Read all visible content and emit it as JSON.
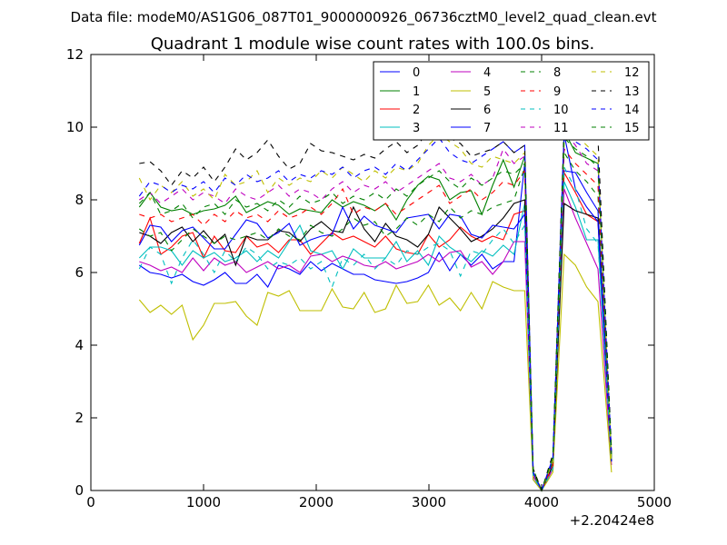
{
  "header": {
    "datafile": "Data file: modeM0/AS1G06_087T01_9000000926_06736cztM0_level2_quad_clean.evt"
  },
  "chart_data": {
    "type": "line",
    "title": "Quadrant 1 module wise count rates with 100.0s bins.",
    "xlabel": "",
    "ylabel": "",
    "xlim": [
      0,
      5000
    ],
    "ylim": [
      0,
      12
    ],
    "x_offset_label": "+2.20424e8",
    "xticks": [
      0,
      1000,
      2000,
      3000,
      4000,
      5000
    ],
    "xtick_labels": [
      "0",
      "1000",
      "2000",
      "3000",
      "4000",
      "5000"
    ],
    "yticks": [
      0,
      2,
      4,
      6,
      8,
      10,
      12
    ],
    "ytick_labels": [
      "0",
      "2",
      "4",
      "6",
      "8",
      "10",
      "12"
    ],
    "legend_position": "top-right",
    "x": [
      430,
      525,
      620,
      715,
      810,
      905,
      1000,
      1095,
      1190,
      1285,
      1380,
      1475,
      1570,
      1665,
      1760,
      1855,
      1950,
      2045,
      2140,
      2235,
      2330,
      2425,
      2520,
      2615,
      2710,
      2805,
      2900,
      2995,
      3090,
      3185,
      3280,
      3375,
      3470,
      3565,
      3660,
      3755,
      3850,
      3925,
      4000,
      4100,
      4200,
      4300,
      4400,
      4500,
      4620
    ],
    "series": [
      {
        "name": "0",
        "color": "#0000ff",
        "dash": "solid",
        "values": [
          6.2,
          6.0,
          5.95,
          5.85,
          5.95,
          5.75,
          5.65,
          5.8,
          6.0,
          5.7,
          5.7,
          5.95,
          5.6,
          6.2,
          6.1,
          5.95,
          6.3,
          6.05,
          6.25,
          6.1,
          5.95,
          5.95,
          5.8,
          5.75,
          5.7,
          5.75,
          5.85,
          6.0,
          6.55,
          6.05,
          6.5,
          6.2,
          6.5,
          6.1,
          6.3,
          6.3,
          9.0,
          0.3,
          0.0,
          0.6,
          8.8,
          8.75,
          8.2,
          7.7,
          0.9
        ]
      },
      {
        "name": "1",
        "color": "#008000",
        "dash": "solid",
        "values": [
          7.8,
          8.2,
          7.8,
          7.7,
          7.75,
          7.6,
          7.7,
          7.75,
          7.85,
          8.1,
          7.65,
          7.8,
          7.95,
          7.85,
          7.6,
          7.75,
          7.7,
          7.65,
          8.0,
          7.8,
          7.95,
          7.85,
          7.7,
          7.9,
          7.45,
          8.0,
          8.4,
          8.65,
          8.55,
          8.0,
          8.2,
          8.25,
          7.6,
          8.4,
          9.1,
          8.35,
          9.2,
          0.4,
          0.0,
          0.8,
          9.9,
          9.3,
          9.15,
          9.0,
          0.9
        ]
      },
      {
        "name": "2",
        "color": "#ff0000",
        "dash": "solid",
        "values": [
          6.8,
          7.5,
          6.5,
          6.7,
          7.0,
          7.1,
          6.4,
          7.0,
          6.6,
          6.55,
          7.0,
          6.7,
          6.8,
          6.55,
          6.9,
          6.9,
          6.5,
          6.8,
          7.1,
          6.9,
          7.0,
          6.85,
          6.7,
          7.0,
          6.65,
          6.55,
          6.5,
          7.05,
          6.7,
          6.9,
          7.25,
          7.0,
          6.85,
          7.0,
          6.9,
          7.6,
          7.7,
          0.4,
          0.0,
          0.6,
          8.75,
          8.2,
          7.6,
          7.4,
          0.8
        ]
      },
      {
        "name": "3",
        "color": "#00bfbf",
        "dash": "solid",
        "values": [
          6.4,
          6.7,
          6.7,
          6.6,
          6.2,
          6.6,
          6.4,
          6.55,
          6.3,
          6.4,
          6.6,
          6.3,
          6.6,
          6.4,
          6.85,
          7.3,
          6.6,
          6.5,
          6.6,
          6.1,
          6.65,
          6.4,
          6.4,
          6.4,
          6.85,
          6.3,
          6.6,
          6.2,
          7.0,
          6.7,
          6.5,
          6.3,
          6.6,
          6.45,
          6.75,
          6.5,
          7.9,
          0.4,
          0.0,
          0.6,
          8.5,
          7.8,
          6.9,
          6.9,
          0.8
        ]
      },
      {
        "name": "4",
        "color": "#bf00bf",
        "dash": "solid",
        "values": [
          6.3,
          6.2,
          6.05,
          6.15,
          6.0,
          6.4,
          6.05,
          6.4,
          6.2,
          6.3,
          6.0,
          6.15,
          6.3,
          6.1,
          6.2,
          6.0,
          6.45,
          6.5,
          6.3,
          6.45,
          6.35,
          6.2,
          6.15,
          6.3,
          6.1,
          6.2,
          6.3,
          6.5,
          6.3,
          6.55,
          6.6,
          6.15,
          6.3,
          5.95,
          6.3,
          6.85,
          6.85,
          0.4,
          0.0,
          0.6,
          8.3,
          7.5,
          6.8,
          6.1,
          0.7
        ]
      },
      {
        "name": "5",
        "color": "#bfbf00",
        "dash": "solid",
        "values": [
          5.25,
          4.9,
          5.1,
          4.85,
          5.1,
          4.15,
          4.55,
          5.15,
          5.15,
          5.2,
          4.8,
          4.55,
          5.45,
          5.35,
          5.5,
          4.95,
          4.95,
          4.95,
          5.55,
          5.05,
          5.0,
          5.45,
          4.9,
          5.0,
          5.65,
          5.15,
          5.2,
          5.65,
          5.1,
          5.3,
          4.95,
          5.45,
          5.0,
          5.75,
          5.6,
          5.5,
          5.5,
          0.3,
          0.0,
          0.5,
          6.5,
          6.2,
          5.6,
          5.2,
          0.5
        ]
      },
      {
        "name": "6",
        "color": "#000000",
        "dash": "solid",
        "values": [
          7.1,
          7.0,
          6.8,
          7.1,
          7.25,
          6.85,
          7.15,
          6.8,
          7.05,
          6.2,
          7.0,
          6.9,
          6.9,
          7.15,
          7.1,
          6.85,
          7.2,
          7.4,
          7.15,
          7.1,
          7.8,
          7.2,
          6.85,
          7.35,
          7.0,
          6.9,
          6.7,
          7.05,
          7.8,
          7.5,
          7.2,
          6.85,
          7.0,
          7.2,
          7.5,
          7.9,
          8.0,
          0.5,
          0.0,
          0.7,
          7.9,
          7.7,
          7.6,
          7.5,
          0.8
        ]
      },
      {
        "name": "7",
        "color": "#0000ff",
        "dash": "solid",
        "values": [
          6.75,
          7.3,
          7.25,
          6.85,
          7.15,
          7.25,
          6.95,
          6.65,
          6.65,
          7.05,
          7.45,
          7.35,
          6.95,
          7.1,
          7.35,
          6.75,
          6.9,
          7.0,
          7.05,
          7.8,
          7.2,
          7.55,
          7.3,
          7.2,
          7.1,
          7.5,
          7.55,
          7.6,
          7.2,
          7.6,
          7.55,
          7.05,
          6.95,
          7.3,
          7.25,
          7.2,
          7.6,
          0.5,
          0.0,
          0.8,
          9.8,
          8.3,
          7.8,
          7.4,
          0.8
        ]
      },
      {
        "name": "8",
        "color": "#008000",
        "dash": "dashed",
        "values": [
          7.2,
          7.0,
          7.1,
          6.6,
          6.9,
          7.2,
          7.0,
          6.8,
          7.0,
          6.9,
          7.0,
          7.1,
          6.9,
          7.2,
          7.0,
          6.9,
          7.3,
          7.1,
          7.0,
          7.2,
          7.5,
          7.3,
          7.4,
          7.0,
          7.2,
          7.5,
          7.3,
          7.6,
          7.4,
          7.8,
          7.5,
          7.7,
          7.6,
          7.8,
          7.9,
          8.0,
          8.9,
          0.6,
          0.0,
          0.8,
          9.3,
          8.8,
          8.5,
          8.1,
          1.0
        ]
      },
      {
        "name": "9",
        "color": "#ff0000",
        "dash": "dashed",
        "values": [
          7.6,
          7.5,
          7.6,
          7.4,
          7.5,
          7.6,
          7.3,
          7.6,
          7.4,
          7.7,
          7.5,
          7.6,
          7.4,
          7.7,
          7.5,
          7.6,
          7.8,
          7.6,
          7.9,
          8.3,
          7.6,
          7.8,
          7.7,
          7.9,
          7.6,
          7.8,
          8.0,
          8.2,
          8.4,
          7.9,
          8.1,
          8.3,
          8.0,
          8.2,
          8.5,
          8.4,
          8.8,
          0.5,
          0.0,
          0.7,
          9.4,
          9.0,
          8.7,
          8.4,
          1.0
        ]
      },
      {
        "name": "10",
        "color": "#00bfbf",
        "dash": "dashed",
        "values": [
          6.1,
          6.7,
          6.5,
          5.7,
          6.4,
          6.9,
          6.5,
          6.0,
          6.6,
          6.3,
          6.7,
          6.5,
          6.1,
          6.3,
          6.2,
          6.4,
          6.1,
          6.3,
          5.6,
          6.4,
          6.2,
          6.5,
          6.1,
          6.4,
          6.2,
          6.6,
          6.5,
          6.7,
          6.8,
          6.6,
          5.9,
          6.6,
          6.5,
          6.9,
          7.2,
          6.8,
          7.3,
          0.4,
          0.0,
          0.6,
          8.9,
          8.3,
          7.2,
          6.8,
          0.8
        ]
      },
      {
        "name": "11",
        "color": "#bf00bf",
        "dash": "dashed",
        "values": [
          8.0,
          8.2,
          7.9,
          8.1,
          8.3,
          8.0,
          8.2,
          8.1,
          7.9,
          8.3,
          8.1,
          8.0,
          8.2,
          8.4,
          8.1,
          8.3,
          8.2,
          8.0,
          8.3,
          8.5,
          8.2,
          8.4,
          8.3,
          8.5,
          8.2,
          8.4,
          8.6,
          8.8,
          9.0,
          8.6,
          8.5,
          8.7,
          8.4,
          8.6,
          9.4,
          9.0,
          9.2,
          0.5,
          0.0,
          0.8,
          9.9,
          9.5,
          9.0,
          8.8,
          1.0
        ]
      },
      {
        "name": "12",
        "color": "#bfbf00",
        "dash": "dashed",
        "values": [
          8.6,
          8.0,
          8.4,
          8.2,
          8.5,
          8.1,
          8.3,
          8.0,
          8.7,
          8.4,
          8.5,
          8.8,
          8.2,
          8.6,
          8.4,
          8.6,
          8.5,
          8.8,
          8.6,
          8.9,
          8.7,
          8.5,
          8.8,
          8.6,
          8.9,
          8.8,
          9.0,
          9.5,
          9.8,
          9.6,
          9.4,
          9.0,
          8.9,
          9.2,
          9.1,
          9.0,
          9.3,
          0.6,
          0.0,
          0.8,
          9.6,
          9.8,
          9.5,
          9.2,
          0.8
        ]
      },
      {
        "name": "13",
        "color": "#000000",
        "dash": "dashed",
        "values": [
          9.0,
          9.05,
          8.8,
          8.4,
          8.8,
          8.6,
          8.9,
          8.5,
          8.9,
          9.4,
          9.1,
          9.3,
          9.65,
          9.2,
          8.85,
          9.0,
          9.55,
          9.35,
          9.3,
          9.2,
          9.1,
          9.25,
          9.15,
          9.4,
          9.6,
          9.3,
          9.5,
          9.9,
          10.3,
          9.7,
          9.55,
          9.2,
          9.3,
          9.4,
          9.6,
          9.3,
          9.5,
          0.6,
          0.0,
          1.0,
          10.0,
          9.9,
          9.95,
          9.7,
          1.1
        ]
      },
      {
        "name": "14",
        "color": "#0000ff",
        "dash": "dashed",
        "values": [
          8.1,
          8.5,
          8.4,
          8.2,
          8.4,
          8.3,
          8.5,
          8.2,
          8.6,
          8.4,
          8.7,
          8.5,
          8.6,
          8.8,
          8.5,
          8.7,
          8.6,
          8.8,
          8.7,
          8.9,
          8.6,
          8.8,
          8.9,
          8.7,
          9.0,
          8.8,
          9.1,
          9.4,
          9.7,
          9.3,
          9.1,
          9.0,
          9.2,
          9.4,
          9.6,
          9.3,
          9.5,
          0.5,
          0.0,
          0.9,
          9.8,
          9.6,
          9.4,
          9.1,
          1.0
        ]
      },
      {
        "name": "15",
        "color": "#008000",
        "dash": "dashed",
        "values": [
          7.9,
          8.2,
          7.6,
          7.7,
          7.9,
          7.5,
          7.8,
          7.9,
          7.6,
          8.0,
          7.8,
          7.9,
          7.7,
          8.0,
          7.8,
          8.1,
          7.9,
          8.0,
          8.2,
          7.9,
          8.1,
          8.0,
          8.2,
          8.0,
          8.3,
          8.1,
          8.4,
          8.6,
          8.8,
          8.5,
          8.3,
          8.6,
          8.4,
          8.6,
          8.8,
          8.7,
          9.0,
          0.5,
          0.0,
          0.9,
          9.7,
          9.4,
          9.2,
          8.9,
          1.0
        ]
      }
    ]
  }
}
